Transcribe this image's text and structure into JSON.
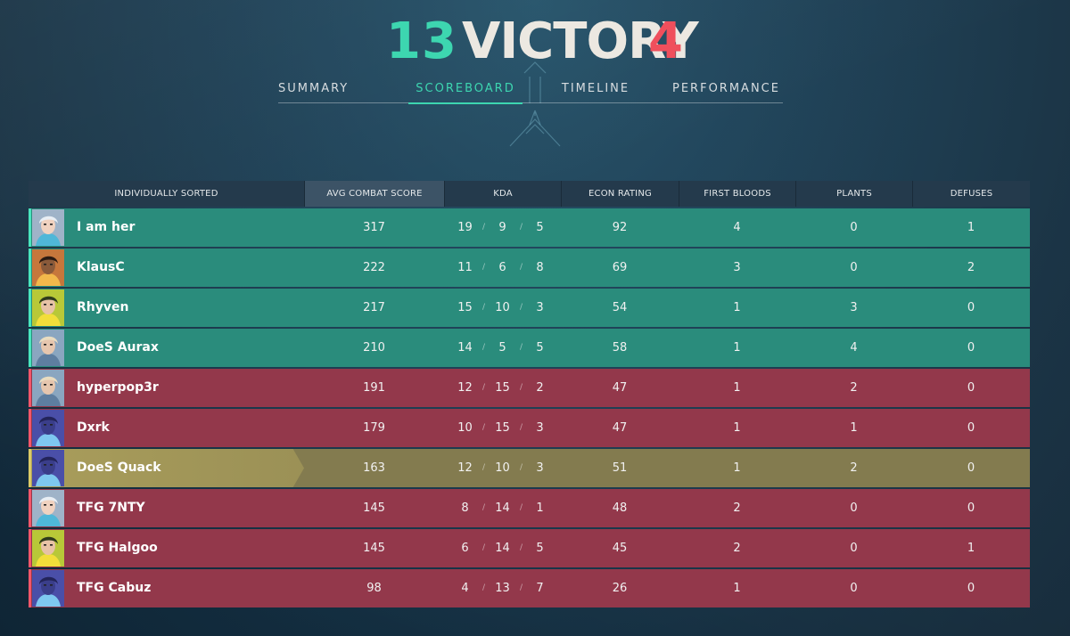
{
  "header": {
    "team_score": "13",
    "result": "VICTORY",
    "enemy_score": "4"
  },
  "tabs": [
    {
      "label": "SUMMARY",
      "active": false
    },
    {
      "label": "SCOREBOARD",
      "active": true
    },
    {
      "label": "TIMELINE",
      "active": false
    },
    {
      "label": "PERFORMANCE",
      "active": false
    }
  ],
  "table": {
    "columns": [
      "INDIVIDUALLY SORTED",
      "AVG COMBAT SCORE",
      "KDA",
      "ECON RATING",
      "FIRST BLOODS",
      "PLANTS",
      "DEFUSES"
    ],
    "sorted_column": "AVG COMBAT SCORE",
    "kda_separator": "/",
    "rows": [
      {
        "name": "I am her",
        "team": "win",
        "agent_icon": "jett-portrait",
        "acs": "317",
        "k": "19",
        "d": "9",
        "a": "5",
        "econ": "92",
        "fb": "4",
        "plants": "0",
        "defuses": "1"
      },
      {
        "name": "KlausC",
        "team": "win",
        "agent_icon": "phoenix-portrait",
        "acs": "222",
        "k": "11",
        "d": "6",
        "a": "8",
        "econ": "69",
        "fb": "3",
        "plants": "0",
        "defuses": "2"
      },
      {
        "name": "Rhyven",
        "team": "win",
        "agent_icon": "killjoy-portrait",
        "acs": "217",
        "k": "15",
        "d": "10",
        "a": "3",
        "econ": "54",
        "fb": "1",
        "plants": "3",
        "defuses": "0"
      },
      {
        "name": "DoeS Aurax",
        "team": "win",
        "agent_icon": "sova-portrait",
        "acs": "210",
        "k": "14",
        "d": "5",
        "a": "5",
        "econ": "58",
        "fb": "1",
        "plants": "4",
        "defuses": "0"
      },
      {
        "name": "hyperpop3r",
        "team": "lose",
        "agent_icon": "sova-portrait",
        "acs": "191",
        "k": "12",
        "d": "15",
        "a": "2",
        "econ": "47",
        "fb": "1",
        "plants": "2",
        "defuses": "0"
      },
      {
        "name": "Dxrk",
        "team": "lose",
        "agent_icon": "omen-portrait",
        "acs": "179",
        "k": "10",
        "d": "15",
        "a": "3",
        "econ": "47",
        "fb": "1",
        "plants": "1",
        "defuses": "0"
      },
      {
        "name": "DoeS Quack",
        "team": "self",
        "agent_icon": "omen-portrait",
        "acs": "163",
        "k": "12",
        "d": "10",
        "a": "3",
        "econ": "51",
        "fb": "1",
        "plants": "2",
        "defuses": "0"
      },
      {
        "name": "TFG 7NTY",
        "team": "lose",
        "agent_icon": "jett-portrait",
        "acs": "145",
        "k": "8",
        "d": "14",
        "a": "1",
        "econ": "48",
        "fb": "2",
        "plants": "0",
        "defuses": "0"
      },
      {
        "name": "TFG Halgoo",
        "team": "lose",
        "agent_icon": "killjoy-portrait",
        "acs": "145",
        "k": "6",
        "d": "14",
        "a": "5",
        "econ": "45",
        "fb": "2",
        "plants": "0",
        "defuses": "1"
      },
      {
        "name": "TFG Cabuz",
        "team": "lose",
        "agent_icon": "omen-portrait",
        "acs": "98",
        "k": "4",
        "d": "13",
        "a": "7",
        "econ": "26",
        "fb": "1",
        "plants": "0",
        "defuses": "0"
      }
    ]
  },
  "colors": {
    "win": "#2a8c7c",
    "lose": "#93384b",
    "self": "#837b4f",
    "accent_teal": "#3dd6b0",
    "accent_red": "#ef4f5c"
  }
}
